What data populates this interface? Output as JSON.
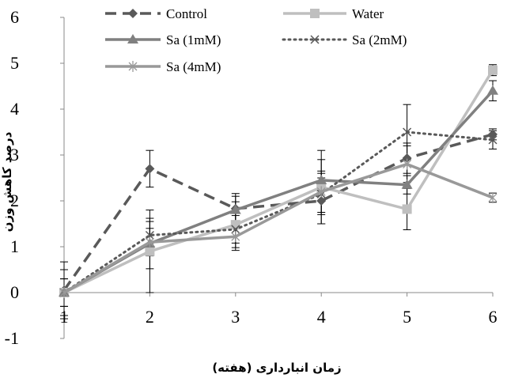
{
  "chart_data": {
    "type": "line",
    "title": "",
    "xlabel": "زمان انبارداری (هفته)",
    "ylabel": "درصد کاهش وزن",
    "x": [
      1,
      2,
      3,
      4,
      5,
      6
    ],
    "x_tick_labels": [
      "1",
      "2",
      "3",
      "4",
      "5",
      "6"
    ],
    "y_tick_labels": [
      "-1",
      "0",
      "1",
      "2",
      "3",
      "4",
      "5",
      "6"
    ],
    "xlim": [
      1,
      6
    ],
    "ylim": [
      -1,
      6
    ],
    "grid": false,
    "legend_position": "top",
    "series": [
      {
        "name": "Control",
        "color": "#595959",
        "line_style": "dashed",
        "marker": "diamond",
        "values": [
          0.05,
          2.7,
          1.83,
          2.0,
          2.93,
          3.45
        ],
        "error": [
          0.62,
          0.4,
          0.33,
          0.5,
          0.33,
          0.12
        ]
      },
      {
        "name": "Water",
        "color": "#bfbfbf",
        "line_style": "solid",
        "marker": "square",
        "values": [
          0.0,
          0.9,
          1.48,
          2.3,
          1.82,
          4.85
        ],
        "error": [
          0.0,
          0.9,
          0.5,
          0.8,
          0.45,
          0.12
        ]
      },
      {
        "name": "Sa (1mM)",
        "color": "#808080",
        "line_style": "solid",
        "marker": "triangle",
        "values": [
          0.0,
          1.07,
          1.8,
          2.45,
          2.35,
          4.4
        ],
        "error": [
          0.5,
          0.55,
          0.3,
          0.45,
          0.2,
          0.22
        ]
      },
      {
        "name": "Sa (2mM)",
        "color": "#595959",
        "line_style": "dotted",
        "marker": "x",
        "values": [
          0.0,
          1.25,
          1.38,
          2.15,
          3.5,
          3.33
        ],
        "error": [
          0.3,
          0.3,
          0.3,
          0.45,
          0.6,
          0.2
        ]
      },
      {
        "name": "Sa (4mM)",
        "color": "#999999",
        "line_style": "solid",
        "marker": "asterisk",
        "values": [
          0.0,
          1.1,
          1.22,
          2.2,
          2.8,
          2.07
        ],
        "error": [
          0.3,
          0.3,
          0.3,
          0.45,
          0.4,
          0.1
        ]
      }
    ]
  }
}
